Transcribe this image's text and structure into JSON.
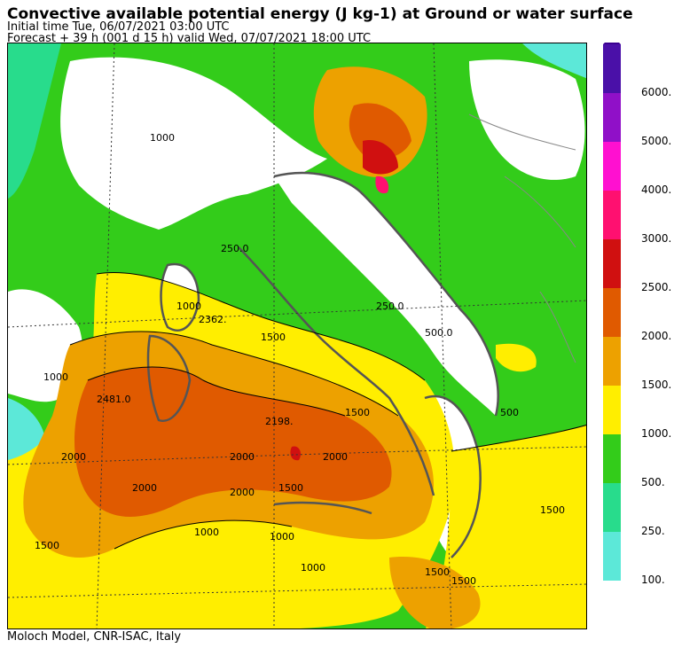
{
  "header": {
    "title": "Convective available potential energy (J kg-1) at Ground or water surface",
    "initial_time": "Initial time  Tue, 06/07/2021  03:00 UTC",
    "forecast": "Forecast  +  39 h  (001 d 15 h)  valid Wed, 07/07/2021 18:00 UTC"
  },
  "footer": {
    "credit": "Moloch Model, CNR-ISAC, Italy"
  },
  "legend": {
    "levels": [
      {
        "label": "100.",
        "color": "#5ce8d8"
      },
      {
        "label": "250.",
        "color": "#28dc8c"
      },
      {
        "label": "500.",
        "color": "#33cc1a"
      },
      {
        "label": "1000.",
        "color": "#ffee00"
      },
      {
        "label": "1500.",
        "color": "#eda100"
      },
      {
        "label": "2000.",
        "color": "#e05a00"
      },
      {
        "label": "2500.",
        "color": "#d01010"
      },
      {
        "label": "3000.",
        "color": "#ff1070"
      },
      {
        "label": "4000.",
        "color": "#ff10d0"
      },
      {
        "label": "5000.",
        "color": "#9010c8"
      },
      {
        "label": "6000.",
        "color": "#4a10a8"
      }
    ],
    "arrow_color": "#3a0090"
  },
  "map": {
    "contour_labels": [
      "1000",
      "250.0",
      "1000",
      "1000",
      "2481.0",
      "2000",
      "2000",
      "2000",
      "1500",
      "1500",
      "2000",
      "2000",
      "2198.",
      "1500",
      "1000",
      "1000",
      "1500",
      "1500",
      "1500",
      "1000",
      "500",
      "250.0",
      "500.0",
      "1500",
      "2362."
    ]
  }
}
